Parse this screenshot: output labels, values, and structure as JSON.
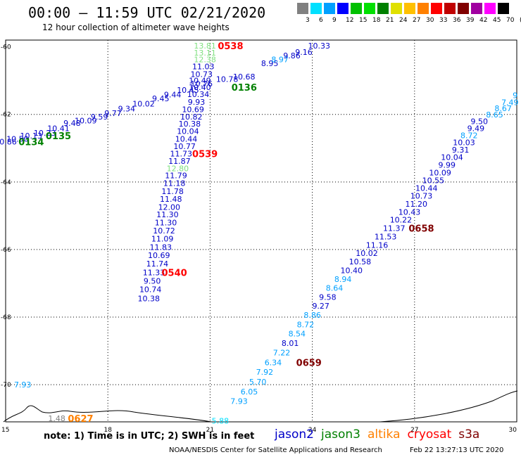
{
  "header": {
    "title": "00:00 – 11:59 UTC 02/21/2020",
    "subtitle": "12 hour collection of altimeter wave heights"
  },
  "scale": {
    "colors": [
      "#808080",
      "#00e0ff",
      "#00a0ff",
      "#0000ff",
      "#00c000",
      "#00e000",
      "#008000",
      "#e0e000",
      "#ffc000",
      "#ff8000",
      "#ff0000",
      "#c00000",
      "#800000",
      "#a000a0",
      "#ff00ff",
      "#000000"
    ],
    "labels": [
      "3",
      "6",
      "9",
      "12",
      "15",
      "18",
      "21",
      "24",
      "27",
      "30",
      "33",
      "36",
      "39",
      "42",
      "45",
      "70",
      "(ft)"
    ]
  },
  "axes": {
    "x_ticks": [
      "15",
      "18",
      "21",
      "24",
      "27",
      "30"
    ],
    "y_ticks": [
      "-60",
      "-62",
      "-64",
      "-66",
      "-68",
      "-70"
    ]
  },
  "tracks": [
    {
      "name": "track-a",
      "points": [
        {
          "v": "10.86",
          "c": "#0000c8",
          "lon": 15.0,
          "lat": -62.81
        },
        {
          "v": "10.50",
          "c": "#0000c8",
          "lon": 15.35,
          "lat": -62.72
        },
        {
          "v": "10.13",
          "c": "#0000c8",
          "lon": 15.75,
          "lat": -62.63
        },
        {
          "v": "10.23",
          "c": "#0000c8",
          "lon": 16.15,
          "lat": -62.55
        },
        {
          "v": "10.41",
          "c": "#0000c8",
          "lon": 16.55,
          "lat": -62.41
        },
        {
          "v": "9.48",
          "c": "#0000c8",
          "lon": 16.95,
          "lat": -62.26
        },
        {
          "v": "10.09",
          "c": "#0000c8",
          "lon": 17.35,
          "lat": -62.18
        },
        {
          "v": "9.59",
          "c": "#0000c8",
          "lon": 17.75,
          "lat": -62.07
        },
        {
          "v": "9.77",
          "c": "#0000c8",
          "lon": 18.15,
          "lat": -61.96
        },
        {
          "v": "9.34",
          "c": "#0000c8",
          "lon": 18.55,
          "lat": -61.83
        },
        {
          "v": "10.02",
          "c": "#0000c8",
          "lon": 19.05,
          "lat": -61.68
        },
        {
          "v": "9.45",
          "c": "#0000c8",
          "lon": 19.55,
          "lat": -61.53
        },
        {
          "v": "9.44",
          "c": "#0000c8",
          "lon": 19.9,
          "lat": -61.41
        },
        {
          "v": "10.45",
          "c": "#0000c8",
          "lon": 20.35,
          "lat": -61.28
        },
        {
          "v": "10.76",
          "c": "#0000c8",
          "lon": 20.75,
          "lat": -61.09
        },
        {
          "v": "10.78",
          "c": "#0000c8",
          "lon": 21.5,
          "lat": -60.96
        },
        {
          "v": "10.68",
          "c": "#0000c8",
          "lon": 22.0,
          "lat": -60.88
        },
        {
          "v": "8.95",
          "c": "#0000c8",
          "lon": 22.75,
          "lat": -60.49
        },
        {
          "v": "8.97",
          "c": "#00a0ff",
          "lon": 23.05,
          "lat": -60.37
        },
        {
          "v": "9.86",
          "c": "#0000c8",
          "lon": 23.4,
          "lat": -60.26
        },
        {
          "v": "9.16",
          "c": "#0000c8",
          "lon": 23.75,
          "lat": -60.15
        },
        {
          "v": "10.33",
          "c": "#0000c8",
          "lon": 24.2,
          "lat": -59.97
        }
      ]
    },
    {
      "name": "track-b",
      "points": [
        {
          "v": "13.81",
          "c": "#80e080",
          "lon": 20.85,
          "lat": -59.97
        },
        {
          "v": "13.11",
          "c": "#80e080",
          "lon": 20.85,
          "lat": -60.17
        },
        {
          "v": "12.38",
          "c": "#80e080",
          "lon": 20.85,
          "lat": -60.37
        },
        {
          "v": "11.03",
          "c": "#0000c8",
          "lon": 20.8,
          "lat": -60.58
        },
        {
          "v": "10.73",
          "c": "#0000c8",
          "lon": 20.75,
          "lat": -60.81
        },
        {
          "v": "10.49",
          "c": "#0000c8",
          "lon": 20.7,
          "lat": -61.0
        },
        {
          "v": "10.40",
          "c": "#0000c8",
          "lon": 20.7,
          "lat": -61.19
        },
        {
          "v": "10.34",
          "c": "#0000c8",
          "lon": 20.65,
          "lat": -61.4
        },
        {
          "v": "9.93",
          "c": "#0000c8",
          "lon": 20.6,
          "lat": -61.63
        },
        {
          "v": "10.69",
          "c": "#0000c8",
          "lon": 20.5,
          "lat": -61.85
        },
        {
          "v": "10.82",
          "c": "#0000c8",
          "lon": 20.45,
          "lat": -62.07
        },
        {
          "v": "10.38",
          "c": "#0000c8",
          "lon": 20.4,
          "lat": -62.28
        },
        {
          "v": "10.04",
          "c": "#0000c8",
          "lon": 20.35,
          "lat": -62.49
        },
        {
          "v": "10.44",
          "c": "#0000c8",
          "lon": 20.3,
          "lat": -62.72
        },
        {
          "v": "10.77",
          "c": "#0000c8",
          "lon": 20.25,
          "lat": -62.94
        },
        {
          "v": "11.73",
          "c": "#0000c8",
          "lon": 20.15,
          "lat": -63.16
        },
        {
          "v": "11.87",
          "c": "#0000c8",
          "lon": 20.1,
          "lat": -63.38
        },
        {
          "v": "12.80",
          "c": "#80e080",
          "lon": 20.05,
          "lat": -63.6
        },
        {
          "v": "11.79",
          "c": "#0000c8",
          "lon": 20.0,
          "lat": -63.81
        },
        {
          "v": "11.18",
          "c": "#0000c8",
          "lon": 19.95,
          "lat": -64.04
        },
        {
          "v": "11.78",
          "c": "#0000c8",
          "lon": 19.9,
          "lat": -64.27
        },
        {
          "v": "11.48",
          "c": "#0000c8",
          "lon": 19.85,
          "lat": -64.5
        },
        {
          "v": "12.00",
          "c": "#0000c8",
          "lon": 19.8,
          "lat": -64.74
        },
        {
          "v": "11.30",
          "c": "#0000c8",
          "lon": 19.75,
          "lat": -64.96
        },
        {
          "v": "11.30",
          "c": "#0000c8",
          "lon": 19.7,
          "lat": -65.2
        },
        {
          "v": "10.72",
          "c": "#0000c8",
          "lon": 19.65,
          "lat": -65.44
        },
        {
          "v": "11.09",
          "c": "#0000c8",
          "lon": 19.6,
          "lat": -65.68
        },
        {
          "v": "11.83",
          "c": "#0000c8",
          "lon": 19.55,
          "lat": -65.93
        },
        {
          "v": "10.69",
          "c": "#0000c8",
          "lon": 19.5,
          "lat": -66.17
        },
        {
          "v": "11.74",
          "c": "#0000c8",
          "lon": 19.45,
          "lat": -66.42
        },
        {
          "v": "11.33",
          "c": "#0000c8",
          "lon": 19.35,
          "lat": -66.68
        },
        {
          "v": "9.50",
          "c": "#0000c8",
          "lon": 19.3,
          "lat": -66.93
        },
        {
          "v": "10.74",
          "c": "#0000c8",
          "lon": 19.25,
          "lat": -67.18
        },
        {
          "v": "10.38",
          "c": "#0000c8",
          "lon": 19.2,
          "lat": -67.45
        }
      ]
    },
    {
      "name": "track-c",
      "points": [
        {
          "v": "9",
          "c": "#00a0ff",
          "lon": 29.95,
          "lat": -61.43
        },
        {
          "v": "7.49",
          "c": "#00a0ff",
          "lon": 29.8,
          "lat": -61.64
        },
        {
          "v": "8.67",
          "c": "#00a0ff",
          "lon": 29.6,
          "lat": -61.82
        },
        {
          "v": "8.65",
          "c": "#00a0ff",
          "lon": 29.35,
          "lat": -62.01
        },
        {
          "v": "9.50",
          "c": "#0000c8",
          "lon": 28.9,
          "lat": -62.2
        },
        {
          "v": "9.49",
          "c": "#0000c8",
          "lon": 28.8,
          "lat": -62.41
        },
        {
          "v": "8.72",
          "c": "#00a0ff",
          "lon": 28.6,
          "lat": -62.62
        },
        {
          "v": "10.03",
          "c": "#0000c8",
          "lon": 28.45,
          "lat": -62.83
        },
        {
          "v": "9.31",
          "c": "#0000c8",
          "lon": 28.35,
          "lat": -63.05
        },
        {
          "v": "10.04",
          "c": "#0000c8",
          "lon": 28.1,
          "lat": -63.27
        },
        {
          "v": "9.99",
          "c": "#0000c8",
          "lon": 27.95,
          "lat": -63.49
        },
        {
          "v": "10.09",
          "c": "#0000c8",
          "lon": 27.75,
          "lat": -63.72
        },
        {
          "v": "10.55",
          "c": "#0000c8",
          "lon": 27.55,
          "lat": -63.95
        },
        {
          "v": "10.44",
          "c": "#0000c8",
          "lon": 27.35,
          "lat": -64.18
        },
        {
          "v": "10.73",
          "c": "#0000c8",
          "lon": 27.2,
          "lat": -64.41
        },
        {
          "v": "11.20",
          "c": "#0000c8",
          "lon": 27.05,
          "lat": -64.65
        },
        {
          "v": "10.43",
          "c": "#0000c8",
          "lon": 26.85,
          "lat": -64.89
        },
        {
          "v": "10.22",
          "c": "#0000c8",
          "lon": 26.6,
          "lat": -65.12
        },
        {
          "v": "11.37",
          "c": "#0000c8",
          "lon": 26.4,
          "lat": -65.37
        },
        {
          "v": "11.53",
          "c": "#0000c8",
          "lon": 26.15,
          "lat": -65.62
        },
        {
          "v": "11.16",
          "c": "#0000c8",
          "lon": 25.9,
          "lat": -65.87
        },
        {
          "v": "10.02",
          "c": "#0000c8",
          "lon": 25.6,
          "lat": -66.11
        },
        {
          "v": "10.58",
          "c": "#0000c8",
          "lon": 25.4,
          "lat": -66.36
        },
        {
          "v": "10.40",
          "c": "#0000c8",
          "lon": 25.15,
          "lat": -66.62
        },
        {
          "v": "8.94",
          "c": "#00a0ff",
          "lon": 24.9,
          "lat": -66.88
        },
        {
          "v": "8.64",
          "c": "#00a0ff",
          "lon": 24.65,
          "lat": -67.14
        },
        {
          "v": "9.58",
          "c": "#0000c8",
          "lon": 24.45,
          "lat": -67.41
        },
        {
          "v": "9.27",
          "c": "#0000c8",
          "lon": 24.25,
          "lat": -67.67
        },
        {
          "v": "8.86",
          "c": "#00a0ff",
          "lon": 24.0,
          "lat": -67.94
        },
        {
          "v": "8.72",
          "c": "#00a0ff",
          "lon": 23.8,
          "lat": -68.22
        },
        {
          "v": "8.54",
          "c": "#00a0ff",
          "lon": 23.55,
          "lat": -68.49
        },
        {
          "v": "8.01",
          "c": "#0000c8",
          "lon": 23.35,
          "lat": -68.77
        },
        {
          "v": "7.22",
          "c": "#00a0ff",
          "lon": 23.1,
          "lat": -69.05
        },
        {
          "v": "6.34",
          "c": "#00a0ff",
          "lon": 22.85,
          "lat": -69.34
        },
        {
          "v": "7.92",
          "c": "#00a0ff",
          "lon": 22.6,
          "lat": -69.62
        },
        {
          "v": "5.70",
          "c": "#00a0ff",
          "lon": 22.4,
          "lat": -69.91
        },
        {
          "v": "6.05",
          "c": "#00a0ff",
          "lon": 22.15,
          "lat": -70.2
        },
        {
          "v": "7.93",
          "c": "#00a0ff",
          "lon": 21.85,
          "lat": -70.49
        },
        {
          "v": "5.88",
          "c": "#00e0ff",
          "lon": 21.3,
          "lat": -71.07
        }
      ]
    },
    {
      "name": "track-d",
      "points": [
        {
          "v": "7.93",
          "c": "#00a0ff",
          "lon": 15.5,
          "lat": -70.0
        },
        {
          "v": "1.48",
          "c": "#808080",
          "lon": 16.5,
          "lat": -71.0
        }
      ]
    }
  ],
  "time_labels": [
    {
      "t": "0538",
      "c": "#ff0000",
      "lon": 21.6,
      "lat": -59.97
    },
    {
      "t": "0136",
      "c": "#008000",
      "lon": 22.0,
      "lat": -61.19
    },
    {
      "t": "0135",
      "c": "#008000",
      "lon": 16.55,
      "lat": -62.63
    },
    {
      "t": "0134",
      "c": "#008000",
      "lon": 15.75,
      "lat": -62.81
    },
    {
      "t": "0539",
      "c": "#ff0000",
      "lon": 20.85,
      "lat": -63.16
    },
    {
      "t": "0540",
      "c": "#ff0000",
      "lon": 19.95,
      "lat": -66.68
    },
    {
      "t": "0658",
      "c": "#800000",
      "lon": 27.2,
      "lat": -65.37
    },
    {
      "t": "0659",
      "c": "#800000",
      "lon": 23.9,
      "lat": -69.34
    },
    {
      "t": "0627",
      "c": "#ff8000",
      "lon": 17.2,
      "lat": -71.0
    }
  ],
  "footer": {
    "note": "note: 1) Time is in UTC; 2) SWH is in feet",
    "satellites": [
      {
        "name": "jason2",
        "c": "#0000c8"
      },
      {
        "name": "jason3",
        "c": "#008000"
      },
      {
        "name": "altika",
        "c": "#ff8000"
      },
      {
        "name": "cryosat",
        "c": "#ff0000"
      },
      {
        "name": "s3a",
        "c": "#800000"
      }
    ],
    "credit": "NOAA/NESDIS Center for Satellite Applications and Research",
    "timestamp": "Feb 22 13:27:13 UTC 2020"
  }
}
